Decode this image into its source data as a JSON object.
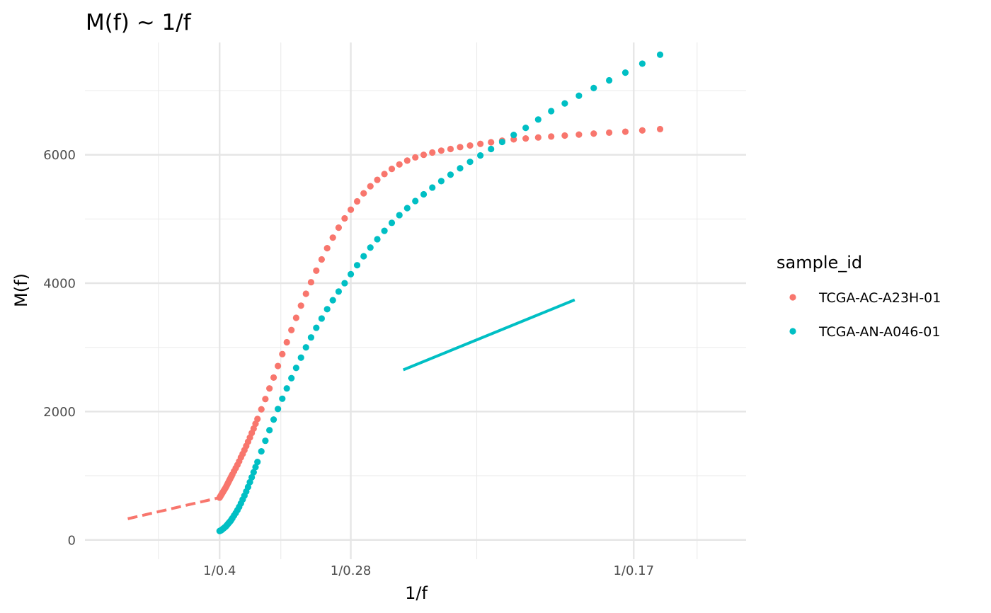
{
  "chart_data": {
    "type": "scatter",
    "title": "M(f) ~ 1/f",
    "xlabel": "1/f",
    "ylabel": "M(f)",
    "x_scale": "reciprocal",
    "xlim": [
      1.4,
      6.8
    ],
    "ylim": [
      -300,
      7750
    ],
    "x_ticks": [
      {
        "x": 2.5,
        "label": "1/0.4"
      },
      {
        "x": 3.5714,
        "label": "1/0.28"
      },
      {
        "x": 5.8824,
        "label": "1/0.17"
      }
    ],
    "x_minor_grid": [
      2.0,
      3.0,
      4.6,
      6.4
    ],
    "y_ticks": [
      {
        "y": 0,
        "label": "0"
      },
      {
        "y": 2000,
        "label": "2000"
      },
      {
        "y": 4000,
        "label": "4000"
      },
      {
        "y": 6000,
        "label": "6000"
      }
    ],
    "y_minor_grid": [
      1000,
      3000,
      5000,
      7000
    ],
    "grid": true,
    "legend": {
      "title": "sample_id",
      "position": "right"
    },
    "series": [
      {
        "name": "TCGA-AC-A23H-01",
        "color": "#F8766D",
        "x": [
          2.5,
          2.5063,
          2.5127,
          2.5189,
          2.5253,
          2.5316,
          2.538,
          2.5445,
          2.551,
          2.5575,
          2.5641,
          2.5707,
          2.5773,
          2.584,
          2.5907,
          2.5975,
          2.6042,
          2.6178,
          2.6316,
          2.6455,
          2.6596,
          2.6738,
          2.6882,
          2.7027,
          2.7174,
          2.7322,
          2.7473,
          2.7624,
          2.7778,
          2.7933,
          2.809,
          2.8409,
          2.8736,
          2.907,
          2.9412,
          2.9762,
          3.012,
          3.0488,
          3.0864,
          3.125,
          3.1646,
          3.2051,
          3.2468,
          3.2895,
          3.3333,
          3.3784,
          3.4247,
          3.4722,
          3.5211,
          3.5714,
          3.6232,
          3.6765,
          3.7313,
          3.7879,
          3.8462,
          3.9063,
          3.9683,
          4.0323,
          4.0984,
          4.1667,
          4.2373,
          4.3103,
          4.386,
          4.4643,
          4.5455,
          4.6296,
          4.717,
          4.8077,
          4.902,
          5.0,
          5.102,
          5.2083,
          5.3191,
          5.4348,
          5.5556,
          5.6818,
          5.814,
          5.9524,
          6.0976
        ],
        "y": [
          660,
          680,
          700,
          720,
          740,
          760,
          780,
          800,
          820,
          845,
          870,
          895,
          920,
          945,
          970,
          995,
          1020,
          1070,
          1120,
          1170,
          1225,
          1285,
          1340,
          1400,
          1465,
          1530,
          1595,
          1665,
          1735,
          1810,
          1885,
          2035,
          2195,
          2360,
          2530,
          2710,
          2895,
          3080,
          3270,
          3460,
          3650,
          3835,
          4015,
          4195,
          4370,
          4545,
          4710,
          4865,
          5010,
          5145,
          5275,
          5400,
          5510,
          5610,
          5700,
          5780,
          5850,
          5910,
          5960,
          6000,
          6035,
          6065,
          6090,
          6120,
          6145,
          6170,
          6195,
          6220,
          6240,
          6255,
          6270,
          6285,
          6300,
          6315,
          6330,
          6345,
          6360,
          6380,
          6400
        ],
        "fit_line": {
          "style": "dashed",
          "x": [
            1.75,
            2.5
          ],
          "y": [
            330,
            660
          ]
        }
      },
      {
        "name": "TCGA-AN-A046-01",
        "color": "#00BFC4",
        "x": [
          2.5,
          2.5063,
          2.5127,
          2.5189,
          2.5253,
          2.5316,
          2.538,
          2.5445,
          2.551,
          2.5575,
          2.5641,
          2.5707,
          2.5773,
          2.584,
          2.5907,
          2.5975,
          2.6042,
          2.6178,
          2.6316,
          2.6455,
          2.6596,
          2.6738,
          2.6882,
          2.7027,
          2.7174,
          2.7322,
          2.7473,
          2.7624,
          2.7778,
          2.7933,
          2.809,
          2.8409,
          2.8736,
          2.907,
          2.9412,
          2.9762,
          3.012,
          3.0488,
          3.0864,
          3.125,
          3.1646,
          3.2051,
          3.2468,
          3.2895,
          3.3333,
          3.3784,
          3.4247,
          3.4722,
          3.5211,
          3.5714,
          3.6232,
          3.6765,
          3.7313,
          3.7879,
          3.8462,
          3.9063,
          3.9683,
          4.0323,
          4.0984,
          4.1667,
          4.2373,
          4.3103,
          4.386,
          4.4643,
          4.5455,
          4.6296,
          4.717,
          4.8077,
          4.902,
          5.0,
          5.102,
          5.2083,
          5.3191,
          5.4348,
          5.5556,
          5.6818,
          5.814,
          5.9524,
          6.0976
        ],
        "y": [
          140,
          145,
          150,
          160,
          170,
          180,
          190,
          200,
          210,
          225,
          240,
          255,
          270,
          285,
          300,
          320,
          340,
          380,
          420,
          465,
          515,
          570,
          630,
          690,
          755,
          825,
          900,
          975,
          1055,
          1135,
          1215,
          1380,
          1545,
          1710,
          1875,
          2040,
          2200,
          2360,
          2520,
          2680,
          2840,
          3000,
          3155,
          3305,
          3450,
          3595,
          3735,
          3870,
          4000,
          4140,
          4280,
          4420,
          4555,
          4685,
          4815,
          4940,
          5060,
          5170,
          5280,
          5385,
          5490,
          5590,
          5690,
          5790,
          5890,
          5990,
          6090,
          6200,
          6310,
          6420,
          6550,
          6680,
          6800,
          6920,
          7040,
          7160,
          7280,
          7420,
          7560
        ],
        "fit_line": {
          "style": "solid",
          "x": [
            4.0,
            5.4
          ],
          "y": [
            2650,
            3740
          ]
        }
      }
    ]
  }
}
